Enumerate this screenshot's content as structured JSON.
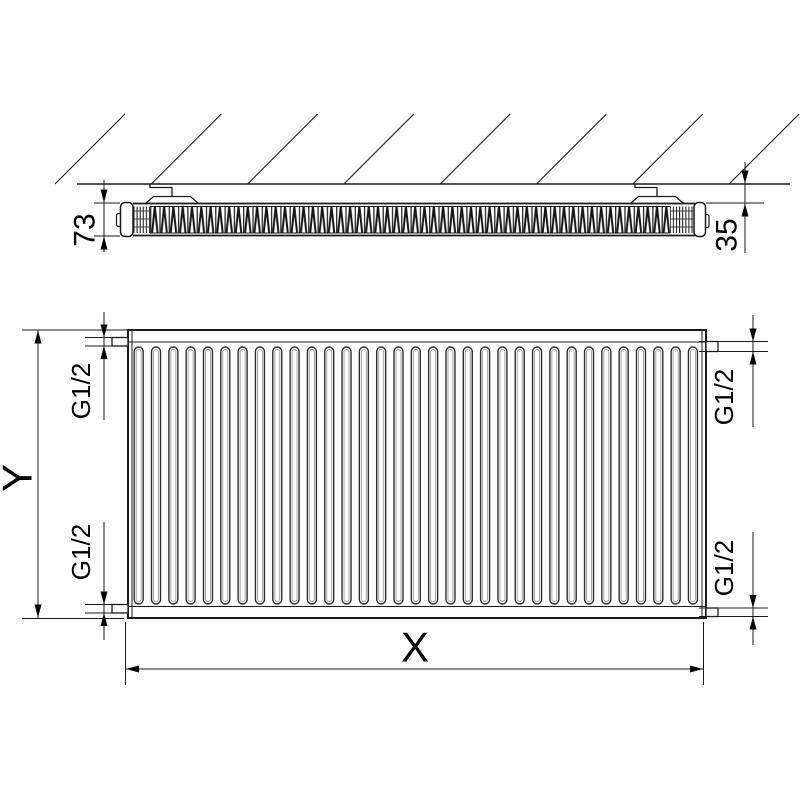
{
  "labels": {
    "depth": "73",
    "wall_clearance": "35",
    "height": "Y",
    "length": "X",
    "thread_top_left": "G1/2",
    "thread_top_right": "G1/2",
    "thread_bottom_left": "G1/2",
    "thread_bottom_right": "G1/2"
  },
  "colors": {
    "background": "#ffffff",
    "line": "#1a1a1a",
    "text": "#000000"
  }
}
